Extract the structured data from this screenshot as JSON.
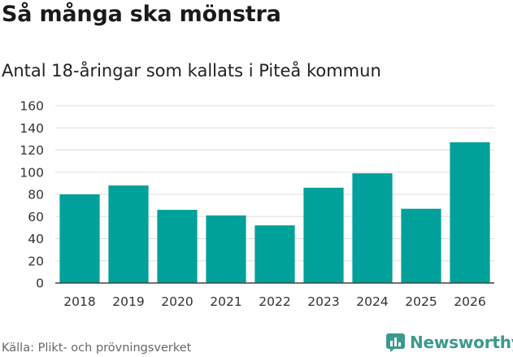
{
  "header": {
    "title": "Så många ska mönstra",
    "subtitle": "Antal 18-åringar som kallats i Piteå kommun"
  },
  "footer": {
    "source": "Källa: Plikt- och prövningsverket",
    "brand": "Newsworthy"
  },
  "colors": {
    "bar": "#00a19a",
    "grid": "#dddddd",
    "axis": "#444444",
    "brand": "#3a9a8c"
  },
  "chart_data": {
    "type": "bar",
    "title": "Så många ska mönstra",
    "subtitle": "Antal 18-åringar som kallats i Piteå kommun",
    "xlabel": "",
    "ylabel": "",
    "categories": [
      "2018",
      "2019",
      "2020",
      "2021",
      "2022",
      "2023",
      "2024",
      "2025",
      "2026"
    ],
    "values": [
      80,
      88,
      66,
      61,
      52,
      86,
      99,
      67,
      127
    ],
    "ylim": [
      0,
      160
    ],
    "yticks": [
      0,
      20,
      40,
      60,
      80,
      100,
      120,
      140,
      160
    ],
    "grid": true
  }
}
